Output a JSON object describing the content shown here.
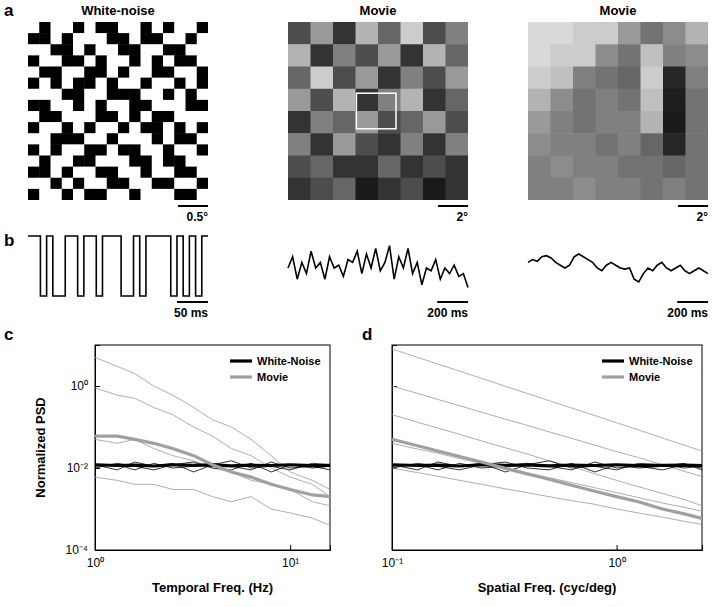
{
  "chart_data": [
    {
      "type": "heatmap",
      "panel": "a",
      "title": "White-noise",
      "xlim": [
        0,
        3
      ],
      "zlim": [
        0,
        1
      ],
      "scale_bar": {
        "value": 0.5,
        "label": "0.5°"
      },
      "cells": [
        [
          1,
          0,
          1,
          1,
          0,
          1,
          0,
          0,
          1,
          1,
          0,
          1,
          0,
          1,
          1,
          0
        ],
        [
          0,
          0,
          1,
          0,
          1,
          1,
          1,
          0,
          0,
          1,
          0,
          0,
          1,
          1,
          0,
          1
        ],
        [
          1,
          1,
          0,
          0,
          1,
          0,
          1,
          1,
          0,
          0,
          1,
          1,
          0,
          0,
          1,
          1
        ],
        [
          0,
          1,
          1,
          0,
          0,
          1,
          0,
          1,
          1,
          0,
          1,
          0,
          1,
          0,
          0,
          1
        ],
        [
          1,
          0,
          0,
          1,
          1,
          0,
          0,
          1,
          0,
          1,
          1,
          0,
          0,
          1,
          1,
          0
        ],
        [
          0,
          1,
          0,
          1,
          0,
          0,
          1,
          0,
          1,
          1,
          0,
          1,
          1,
          0,
          1,
          0
        ],
        [
          1,
          1,
          1,
          0,
          0,
          1,
          1,
          0,
          0,
          0,
          1,
          1,
          0,
          1,
          0,
          1
        ],
        [
          0,
          0,
          1,
          1,
          0,
          1,
          0,
          1,
          1,
          0,
          0,
          1,
          1,
          1,
          0,
          0
        ],
        [
          1,
          0,
          0,
          1,
          1,
          1,
          0,
          0,
          1,
          0,
          1,
          0,
          0,
          1,
          1,
          1
        ],
        [
          0,
          1,
          1,
          0,
          1,
          0,
          1,
          1,
          0,
          1,
          0,
          0,
          1,
          0,
          1,
          0
        ],
        [
          1,
          1,
          0,
          0,
          0,
          1,
          1,
          0,
          1,
          1,
          1,
          0,
          1,
          0,
          0,
          1
        ],
        [
          0,
          1,
          0,
          1,
          1,
          0,
          0,
          1,
          0,
          0,
          1,
          1,
          0,
          1,
          1,
          0
        ],
        [
          1,
          0,
          1,
          1,
          0,
          0,
          1,
          1,
          1,
          0,
          0,
          1,
          0,
          0,
          1,
          1
        ],
        [
          0,
          0,
          1,
          0,
          1,
          1,
          0,
          0,
          1,
          1,
          0,
          1,
          1,
          0,
          0,
          1
        ],
        [
          1,
          1,
          0,
          1,
          0,
          1,
          1,
          0,
          0,
          1,
          1,
          0,
          0,
          1,
          1,
          0
        ],
        [
          0,
          1,
          1,
          0,
          1,
          0,
          0,
          1,
          1,
          0,
          1,
          1,
          1,
          0,
          0,
          1
        ]
      ]
    },
    {
      "type": "heatmap",
      "title": "Movie",
      "xlim": [
        0,
        12
      ],
      "zlim": [
        0,
        1
      ],
      "scale_bar": {
        "value": 2,
        "label": "2°"
      },
      "cells": [
        [
          0.3,
          0.6,
          0.2,
          0.7,
          0.4,
          0.8,
          0.3,
          0.5
        ],
        [
          0.7,
          0.2,
          0.5,
          0.3,
          0.6,
          0.2,
          0.7,
          0.4
        ],
        [
          0.4,
          0.8,
          0.3,
          0.6,
          0.2,
          0.5,
          0.3,
          0.6
        ],
        [
          0.6,
          0.3,
          0.7,
          0.2,
          0.5,
          0.7,
          0.2,
          0.4
        ],
        [
          0.2,
          0.5,
          0.4,
          0.6,
          0.3,
          0.4,
          0.6,
          0.3
        ],
        [
          0.5,
          0.2,
          0.6,
          0.3,
          0.2,
          0.5,
          0.2,
          0.5
        ],
        [
          0.3,
          0.4,
          0.2,
          0.2,
          0.4,
          0.2,
          0.3,
          0.2
        ],
        [
          0.2,
          0.3,
          0.4,
          0.1,
          0.2,
          0.3,
          0.1,
          0.2
        ]
      ]
    },
    {
      "type": "heatmap",
      "title": "Movie",
      "xlim": [
        0,
        12
      ],
      "zlim": [
        0,
        1
      ],
      "scale_bar": {
        "value": 2,
        "label": "2°"
      },
      "cells": [
        [
          0.85,
          0.85,
          0.8,
          0.8,
          0.6,
          0.45,
          0.55,
          0.7
        ],
        [
          0.85,
          0.8,
          0.8,
          0.55,
          0.45,
          0.75,
          0.5,
          0.55
        ],
        [
          0.8,
          0.75,
          0.5,
          0.45,
          0.4,
          0.8,
          0.15,
          0.5
        ],
        [
          0.7,
          0.55,
          0.45,
          0.5,
          0.45,
          0.75,
          0.12,
          0.45
        ],
        [
          0.6,
          0.5,
          0.45,
          0.5,
          0.5,
          0.7,
          0.1,
          0.45
        ],
        [
          0.55,
          0.5,
          0.5,
          0.45,
          0.5,
          0.4,
          0.15,
          0.45
        ],
        [
          0.5,
          0.55,
          0.5,
          0.5,
          0.45,
          0.45,
          0.4,
          0.45
        ],
        [
          0.5,
          0.5,
          0.55,
          0.5,
          0.5,
          0.45,
          0.5,
          0.45
        ]
      ]
    },
    {
      "type": "line",
      "panel": "b",
      "line_style": "step",
      "xlim": [
        0,
        290
      ],
      "ylim": [
        0,
        1
      ],
      "scale_bar": {
        "value": 50,
        "label": "50 ms"
      },
      "x": [
        0,
        10,
        20,
        30,
        40,
        50,
        60,
        70,
        80,
        90,
        100,
        110,
        120,
        130,
        140,
        150,
        160,
        170,
        180,
        190,
        200,
        210,
        220,
        230,
        240,
        250,
        260,
        270,
        280,
        290
      ],
      "values": [
        1,
        1,
        0,
        1,
        0,
        0,
        1,
        1,
        0,
        1,
        1,
        0,
        1,
        1,
        1,
        0,
        0,
        1,
        0,
        1,
        1,
        1,
        1,
        0,
        1,
        0,
        1,
        0,
        1,
        1
      ]
    },
    {
      "type": "line",
      "xlim": [
        0,
        1170
      ],
      "ylim": [
        0,
        1
      ],
      "scale_bar": {
        "value": 200,
        "label": "200 ms"
      },
      "x": [
        0,
        30,
        60,
        90,
        120,
        150,
        180,
        210,
        240,
        270,
        300,
        330,
        360,
        390,
        420,
        450,
        480,
        510,
        540,
        570,
        600,
        630,
        660,
        690,
        720,
        750,
        780,
        810,
        840,
        870,
        900,
        930,
        960,
        990,
        1020,
        1050,
        1080,
        1110,
        1140,
        1170
      ],
      "values": [
        0.5,
        0.7,
        0.3,
        0.6,
        0.4,
        0.8,
        0.5,
        0.6,
        0.3,
        0.7,
        0.5,
        0.55,
        0.35,
        0.65,
        0.6,
        0.8,
        0.4,
        0.75,
        0.5,
        0.85,
        0.45,
        0.6,
        0.9,
        0.3,
        0.7,
        0.5,
        0.85,
        0.4,
        0.6,
        0.2,
        0.5,
        0.45,
        0.65,
        0.3,
        0.5,
        0.4,
        0.55,
        0.35,
        0.4,
        0.15
      ]
    },
    {
      "type": "line",
      "xlim": [
        0,
        1170
      ],
      "ylim": [
        0,
        1
      ],
      "scale_bar": {
        "value": 200,
        "label": "200 ms"
      },
      "x": [
        0,
        30,
        60,
        90,
        120,
        150,
        180,
        210,
        240,
        270,
        300,
        330,
        360,
        390,
        420,
        450,
        480,
        510,
        540,
        570,
        600,
        630,
        660,
        690,
        720,
        750,
        780,
        810,
        840,
        870,
        900,
        930,
        960,
        990,
        1020,
        1050,
        1080,
        1110,
        1140,
        1170
      ],
      "values": [
        0.6,
        0.65,
        0.62,
        0.7,
        0.72,
        0.68,
        0.6,
        0.55,
        0.5,
        0.55,
        0.7,
        0.75,
        0.7,
        0.65,
        0.6,
        0.5,
        0.45,
        0.55,
        0.6,
        0.55,
        0.5,
        0.48,
        0.5,
        0.3,
        0.25,
        0.4,
        0.5,
        0.45,
        0.55,
        0.6,
        0.5,
        0.45,
        0.5,
        0.55,
        0.45,
        0.4,
        0.45,
        0.5,
        0.45,
        0.4
      ]
    },
    {
      "type": "line",
      "panel": "c",
      "log": true,
      "grid": false,
      "legend": "upper right",
      "x_label": "Temporal Freq. (Hz)",
      "y_label": "Normalized PSD",
      "xlim": [
        1,
        16
      ],
      "ylim": [
        0.0001,
        10
      ],
      "xticks": [
        {
          "value": 1,
          "label": "10⁰"
        },
        {
          "value": 10,
          "label": "10¹"
        }
      ],
      "yticks": [
        {
          "value": 0.0001,
          "label": "10⁻⁴"
        },
        {
          "value": 0.01,
          "label": "10⁻²"
        },
        {
          "value": 1,
          "label": "10⁰"
        }
      ],
      "x": [
        1,
        1.3,
        1.6,
        2,
        2.5,
        3.2,
        4,
        5,
        6.3,
        8,
        10,
        13,
        16
      ],
      "series": [
        {
          "color": "#999999",
          "values": [
            5,
            3,
            2,
            1,
            0.6,
            0.3,
            0.15,
            0.1,
            0.05,
            0.02,
            0.008,
            0.005,
            0.003
          ]
        },
        {
          "color": "#999999",
          "values": [
            0.9,
            0.6,
            0.5,
            0.3,
            0.2,
            0.1,
            0.06,
            0.03,
            0.02,
            0.01,
            0.006,
            0.004,
            0.002
          ]
        },
        {
          "color": "#999999",
          "values": [
            0.05,
            0.04,
            0.05,
            0.03,
            0.02,
            0.015,
            0.01,
            0.008,
            0.005,
            0.004,
            0.003,
            0.0015,
            0.0012
          ]
        },
        {
          "color": "#999999",
          "values": [
            0.006,
            0.005,
            0.004,
            0.004,
            0.003,
            0.003,
            0.002,
            0.0015,
            0.002,
            0.001,
            0.0008,
            0.0006,
            0.0004
          ]
        },
        {
          "color": "#000000",
          "values": [
            0.012,
            0.009,
            0.014,
            0.011,
            0.013,
            0.008,
            0.012,
            0.015,
            0.01,
            0.011,
            0.009,
            0.013,
            0.012
          ]
        },
        {
          "color": "#000000",
          "values": [
            0.01,
            0.013,
            0.011,
            0.009,
            0.012,
            0.014,
            0.01,
            0.009,
            0.013,
            0.008,
            0.012,
            0.01,
            0.011
          ]
        },
        {
          "color": "#000000",
          "values": [
            0.011,
            0.012,
            0.009,
            0.013,
            0.01,
            0.011,
            0.013,
            0.011,
            0.009,
            0.014,
            0.01,
            0.011,
            0.009
          ]
        },
        {
          "name": "White-Noise",
          "color": "#000000",
          "values": [
            0.012,
            0.0115,
            0.0118,
            0.0112,
            0.012,
            0.0116,
            0.0119,
            0.0113,
            0.0117,
            0.0115,
            0.012,
            0.0114,
            0.0116
          ]
        },
        {
          "name": "Movie",
          "color": "#a0a0a0",
          "values": [
            0.06,
            0.06,
            0.05,
            0.04,
            0.03,
            0.02,
            0.012,
            0.008,
            0.006,
            0.004,
            0.003,
            0.0022,
            0.002
          ]
        }
      ]
    },
    {
      "type": "line",
      "panel": "d",
      "log": true,
      "grid": false,
      "legend": "upper right",
      "tick_labels": "x",
      "x_label": "Spatial Freq. (cyc/deg)",
      "xlim": [
        0.1,
        2.4
      ],
      "ylim": [
        0.0001,
        10
      ],
      "xticks": [
        {
          "value": 0.1,
          "label": "10⁻¹"
        },
        {
          "value": 1,
          "label": "10⁰"
        }
      ],
      "yticks": [
        0.0001,
        0.01,
        1
      ],
      "x": [
        0.1,
        0.13,
        0.16,
        0.2,
        0.25,
        0.32,
        0.4,
        0.5,
        0.63,
        0.8,
        1,
        1.25,
        1.6,
        2,
        2.4
      ],
      "series": [
        {
          "color": "#999999",
          "values": [
            8,
            4.98,
            3.43,
            2.3,
            1.54,
            0.98,
            0.66,
            0.44,
            0.29,
            0.19,
            0.127,
            0.085,
            0.054,
            0.036,
            0.026
          ]
        },
        {
          "color": "#999999",
          "values": [
            1,
            0.66,
            0.47,
            0.33,
            0.23,
            0.155,
            0.11,
            0.076,
            0.053,
            0.036,
            0.025,
            0.018,
            0.012,
            0.0083,
            0.0062
          ]
        },
        {
          "color": "#999999",
          "values": [
            0.2,
            0.13,
            0.094,
            0.066,
            0.046,
            0.031,
            0.022,
            0.015,
            0.011,
            0.0072,
            0.005,
            0.0035,
            0.0024,
            0.0017,
            0.0012
          ]
        },
        {
          "color": "#999999",
          "values": [
            0.04,
            0.029,
            0.023,
            0.017,
            0.013,
            0.0099,
            0.0076,
            0.0058,
            0.0044,
            0.0033,
            0.0025,
            0.0019,
            0.0014,
            0.0011,
            0.00088
          ]
        },
        {
          "color": "#999999",
          "values": [
            0.01,
            0.0077,
            0.0063,
            0.005,
            0.004,
            0.0031,
            0.0025,
            0.002,
            0.0016,
            0.0013,
            0.001,
            0.0008,
            0.00063,
            0.0005,
            0.00042
          ]
        },
        {
          "color": "#000000",
          "values": [
            0.012,
            0.009,
            0.014,
            0.011,
            0.013,
            0.008,
            0.012,
            0.015,
            0.01,
            0.011,
            0.009,
            0.013,
            0.012,
            0.01,
            0.011
          ]
        },
        {
          "color": "#000000",
          "values": [
            0.01,
            0.013,
            0.011,
            0.009,
            0.012,
            0.014,
            0.01,
            0.009,
            0.013,
            0.008,
            0.012,
            0.01,
            0.011,
            0.013,
            0.009
          ]
        },
        {
          "color": "#000000",
          "values": [
            0.011,
            0.012,
            0.009,
            0.013,
            0.01,
            0.011,
            0.013,
            0.011,
            0.009,
            0.014,
            0.01,
            0.011,
            0.009,
            0.012,
            0.01
          ]
        },
        {
          "name": "White-Noise",
          "color": "#000000",
          "values": [
            0.012,
            0.0115,
            0.0118,
            0.0112,
            0.012,
            0.0116,
            0.0119,
            0.0113,
            0.0117,
            0.0115,
            0.012,
            0.0114,
            0.0116,
            0.0118,
            0.0115
          ]
        },
        {
          "name": "Movie",
          "color": "#a0a0a0",
          "values": [
            0.05,
            0.035,
            0.026,
            0.019,
            0.014,
            0.0098,
            0.0072,
            0.0053,
            0.0038,
            0.0027,
            0.002,
            0.0015,
            0.001,
            0.00076,
            0.00059
          ]
        }
      ]
    }
  ]
}
